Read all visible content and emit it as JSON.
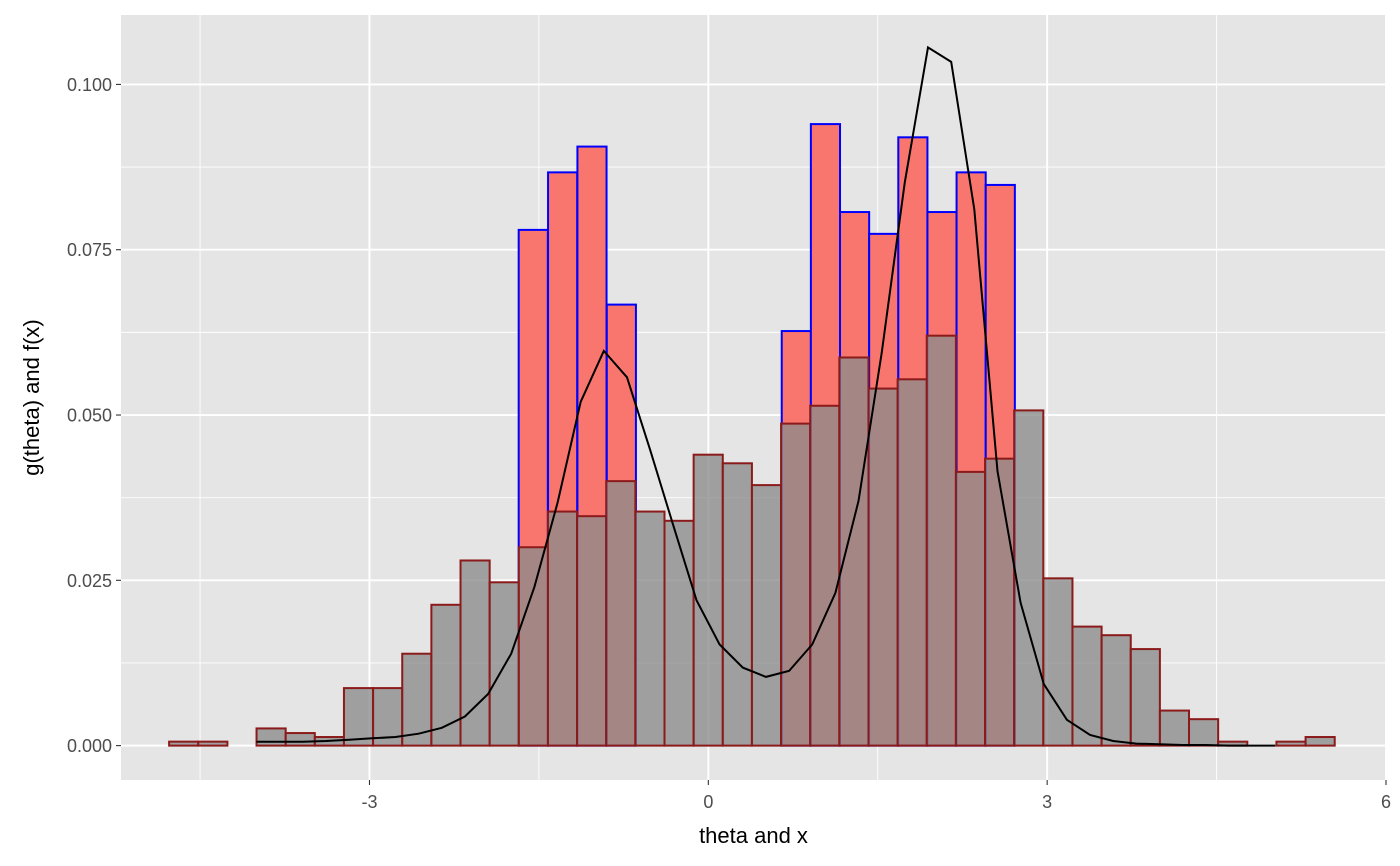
{
  "chart_data": {
    "type": "bar",
    "title": "",
    "xlabel": "theta and x",
    "ylabel": "g(theta)  and f(x)",
    "xlim": [
      -5.2,
      6.0
    ],
    "ylim": [
      -0.0052,
      0.1105
    ],
    "grid": true,
    "x_ticks": [
      -3,
      0,
      3,
      6
    ],
    "x_tick_labels": [
      "-3",
      "0",
      "3",
      "6"
    ],
    "y_ticks": [
      0.0,
      0.025,
      0.05,
      0.075,
      0.1
    ],
    "y_tick_labels": [
      "0.000",
      "0.025",
      "0.050",
      "0.075",
      "0.100"
    ],
    "colors": {
      "panel": "#e5e5e5",
      "grid": "#ffffff",
      "theta_fill": "#f8766d",
      "theta_outline": "#0000ff",
      "x_fill": "#8c8c8c",
      "x_outline": "#8b1a1a",
      "curve": "#000000"
    },
    "series": [
      {
        "kind": "histogram",
        "bin_width": 0.258,
        "bins": [
          {
            "x": -1.55,
            "y": 0.078
          },
          {
            "x": -1.29,
            "y": 0.0867
          },
          {
            "x": -1.03,
            "y": 0.0906
          },
          {
            "x": -0.77,
            "y": 0.0667
          },
          {
            "x": 0.779,
            "y": 0.0627
          },
          {
            "x": 1.037,
            "y": 0.094
          },
          {
            "x": 1.295,
            "y": 0.0807
          },
          {
            "x": 1.553,
            "y": 0.0774
          },
          {
            "x": 1.811,
            "y": 0.092
          },
          {
            "x": 2.069,
            "y": 0.0807
          },
          {
            "x": 2.327,
            "y": 0.0867
          },
          {
            "x": 2.585,
            "y": 0.0848
          }
        ]
      },
      {
        "kind": "histogram",
        "bin_width": 0.258,
        "bins": [
          {
            "x": -4.645,
            "y": 0.0006
          },
          {
            "x": -4.387,
            "y": 0.0006
          },
          {
            "x": -3.871,
            "y": 0.0026
          },
          {
            "x": -3.613,
            "y": 0.0019
          },
          {
            "x": -3.355,
            "y": 0.0013
          },
          {
            "x": -3.097,
            "y": 0.0087
          },
          {
            "x": -2.839,
            "y": 0.0087
          },
          {
            "x": -2.581,
            "y": 0.0139
          },
          {
            "x": -2.323,
            "y": 0.0213
          },
          {
            "x": -2.065,
            "y": 0.028
          },
          {
            "x": -1.807,
            "y": 0.0247
          },
          {
            "x": -1.549,
            "y": 0.03
          },
          {
            "x": -1.291,
            "y": 0.0354
          },
          {
            "x": -1.033,
            "y": 0.0347
          },
          {
            "x": -0.775,
            "y": 0.04
          },
          {
            "x": -0.517,
            "y": 0.0354
          },
          {
            "x": -0.259,
            "y": 0.034
          },
          {
            "x": -0.001,
            "y": 0.044
          },
          {
            "x": 0.257,
            "y": 0.0427
          },
          {
            "x": 0.515,
            "y": 0.0394
          },
          {
            "x": 0.773,
            "y": 0.0487
          },
          {
            "x": 1.031,
            "y": 0.0514
          },
          {
            "x": 1.289,
            "y": 0.0587
          },
          {
            "x": 1.547,
            "y": 0.054
          },
          {
            "x": 1.805,
            "y": 0.0554
          },
          {
            "x": 2.063,
            "y": 0.062
          },
          {
            "x": 2.321,
            "y": 0.0414
          },
          {
            "x": 2.579,
            "y": 0.0434
          },
          {
            "x": 2.837,
            "y": 0.0507
          },
          {
            "x": 3.095,
            "y": 0.0253
          },
          {
            "x": 3.353,
            "y": 0.018
          },
          {
            "x": 3.611,
            "y": 0.0167
          },
          {
            "x": 3.869,
            "y": 0.0146
          },
          {
            "x": 4.127,
            "y": 0.0053
          },
          {
            "x": 4.385,
            "y": 0.004
          },
          {
            "x": 4.643,
            "y": 0.0006
          },
          {
            "x": 5.159,
            "y": 0.0006
          },
          {
            "x": 5.417,
            "y": 0.0013
          }
        ]
      },
      {
        "kind": "line",
        "x": [
          -4.0,
          -3.795,
          -3.59,
          -3.385,
          -3.18,
          -2.975,
          -2.77,
          -2.565,
          -2.36,
          -2.155,
          -1.95,
          -1.745,
          -1.54,
          -1.335,
          -1.13,
          -0.925,
          -0.72,
          -0.515,
          -0.31,
          -0.105,
          0.1,
          0.305,
          0.51,
          0.715,
          0.92,
          1.125,
          1.33,
          1.535,
          1.74,
          1.945,
          2.15,
          2.355,
          2.56,
          2.765,
          2.97,
          3.175,
          3.38,
          3.585,
          3.79,
          3.995,
          4.2,
          4.405,
          4.61,
          4.815,
          5.02
        ],
        "y": [
          0.0006,
          0.0006,
          0.0006,
          0.0007,
          0.0009,
          0.0011,
          0.0013,
          0.0018,
          0.0027,
          0.0044,
          0.0078,
          0.0139,
          0.024,
          0.0367,
          0.052,
          0.0597,
          0.0557,
          0.0447,
          0.0333,
          0.022,
          0.0153,
          0.0118,
          0.0104,
          0.0113,
          0.0153,
          0.0231,
          0.037,
          0.0594,
          0.0852,
          0.1056,
          0.1034,
          0.0811,
          0.0415,
          0.0216,
          0.0093,
          0.0039,
          0.0016,
          0.0007,
          0.0003,
          0.0002,
          0.0001,
          0.0001,
          0.0,
          0.0,
          0.0
        ]
      }
    ]
  }
}
